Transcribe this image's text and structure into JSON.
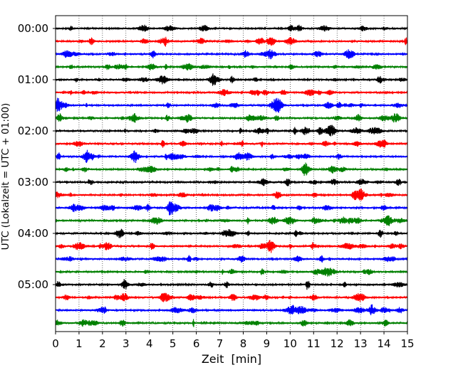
{
  "chart_data": {
    "type": "line",
    "subtype": "helicorder",
    "title": "",
    "xlabel": "Zeit  [min]",
    "ylabel": "UTC (Lokalzeit = UTC + 01:00)",
    "xlim": [
      0,
      15
    ],
    "x_ticks": [
      0,
      1,
      2,
      3,
      4,
      5,
      6,
      7,
      8,
      9,
      10,
      11,
      12,
      13,
      14,
      15
    ],
    "x_tick_labels": [
      "0",
      "1",
      "2",
      "3",
      "4",
      "5",
      "6",
      "7",
      "8",
      "9",
      "10",
      "11",
      "12",
      "13",
      "14",
      "15"
    ],
    "grid": "vertical dotted",
    "trace_interval_minutes": 15,
    "trace_count": 24,
    "trace_start_times": [
      "00:00",
      "00:15",
      "00:30",
      "00:45",
      "01:00",
      "01:15",
      "01:30",
      "01:45",
      "02:00",
      "02:15",
      "02:30",
      "02:45",
      "03:00",
      "03:15",
      "03:30",
      "03:45",
      "04:00",
      "04:15",
      "04:30",
      "04:45",
      "05:00",
      "05:15",
      "05:30",
      "05:45"
    ],
    "y_tick_labels": [
      "00:00",
      "01:00",
      "02:00",
      "03:00",
      "04:00",
      "05:00"
    ],
    "color_cycle": [
      "#000000",
      "#ff0000",
      "#0000ff",
      "#008000"
    ]
  }
}
